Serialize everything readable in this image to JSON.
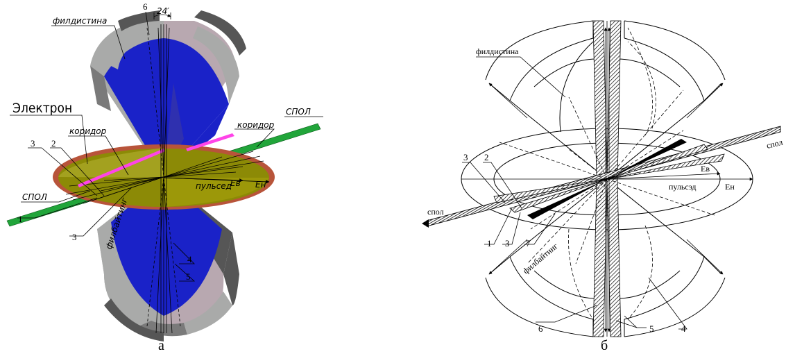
{
  "panel_a": {
    "caption": "а",
    "angle_label": "24′",
    "labels": {
      "fildistina": "филдистина",
      "electron": "Электрон",
      "koridor_left": "коридор",
      "koridor_right": "коридор",
      "spol_right": "СПОЛ",
      "spol_left": "СПОЛ",
      "pulsed": "пульсед",
      "e_v": "Eв",
      "e_n": "Eн",
      "filbaiting": "филбайтинг"
    },
    "numbers": {
      "n6": "6",
      "n3a": "3",
      "n2": "2",
      "n1": "1",
      "n3b": "3",
      "n4": "4",
      "n5": "5"
    },
    "colors": {
      "blue": "#1a22c8",
      "grey": "#a9aaa9",
      "dark": "#565656",
      "pink_grey": "#b8a8b0",
      "olive": "#8c8a06",
      "rim": "#b8543a",
      "green": "#21a53a",
      "magenta": "#ff44e8"
    }
  },
  "panel_b": {
    "caption": "б",
    "labels": {
      "fildistina": "филдистина",
      "spol_right": "спол",
      "spol_left": "спол",
      "pulsed": "пульсэд",
      "e_v": "Eв",
      "e_n": "Eн",
      "filbaiting": "филбайтинг"
    },
    "numbers": {
      "n3a": "3",
      "n2": "2",
      "n1": "1",
      "n3b": "3",
      "n7": "7",
      "n6": "6",
      "n5": "5",
      "n4": "4"
    }
  }
}
